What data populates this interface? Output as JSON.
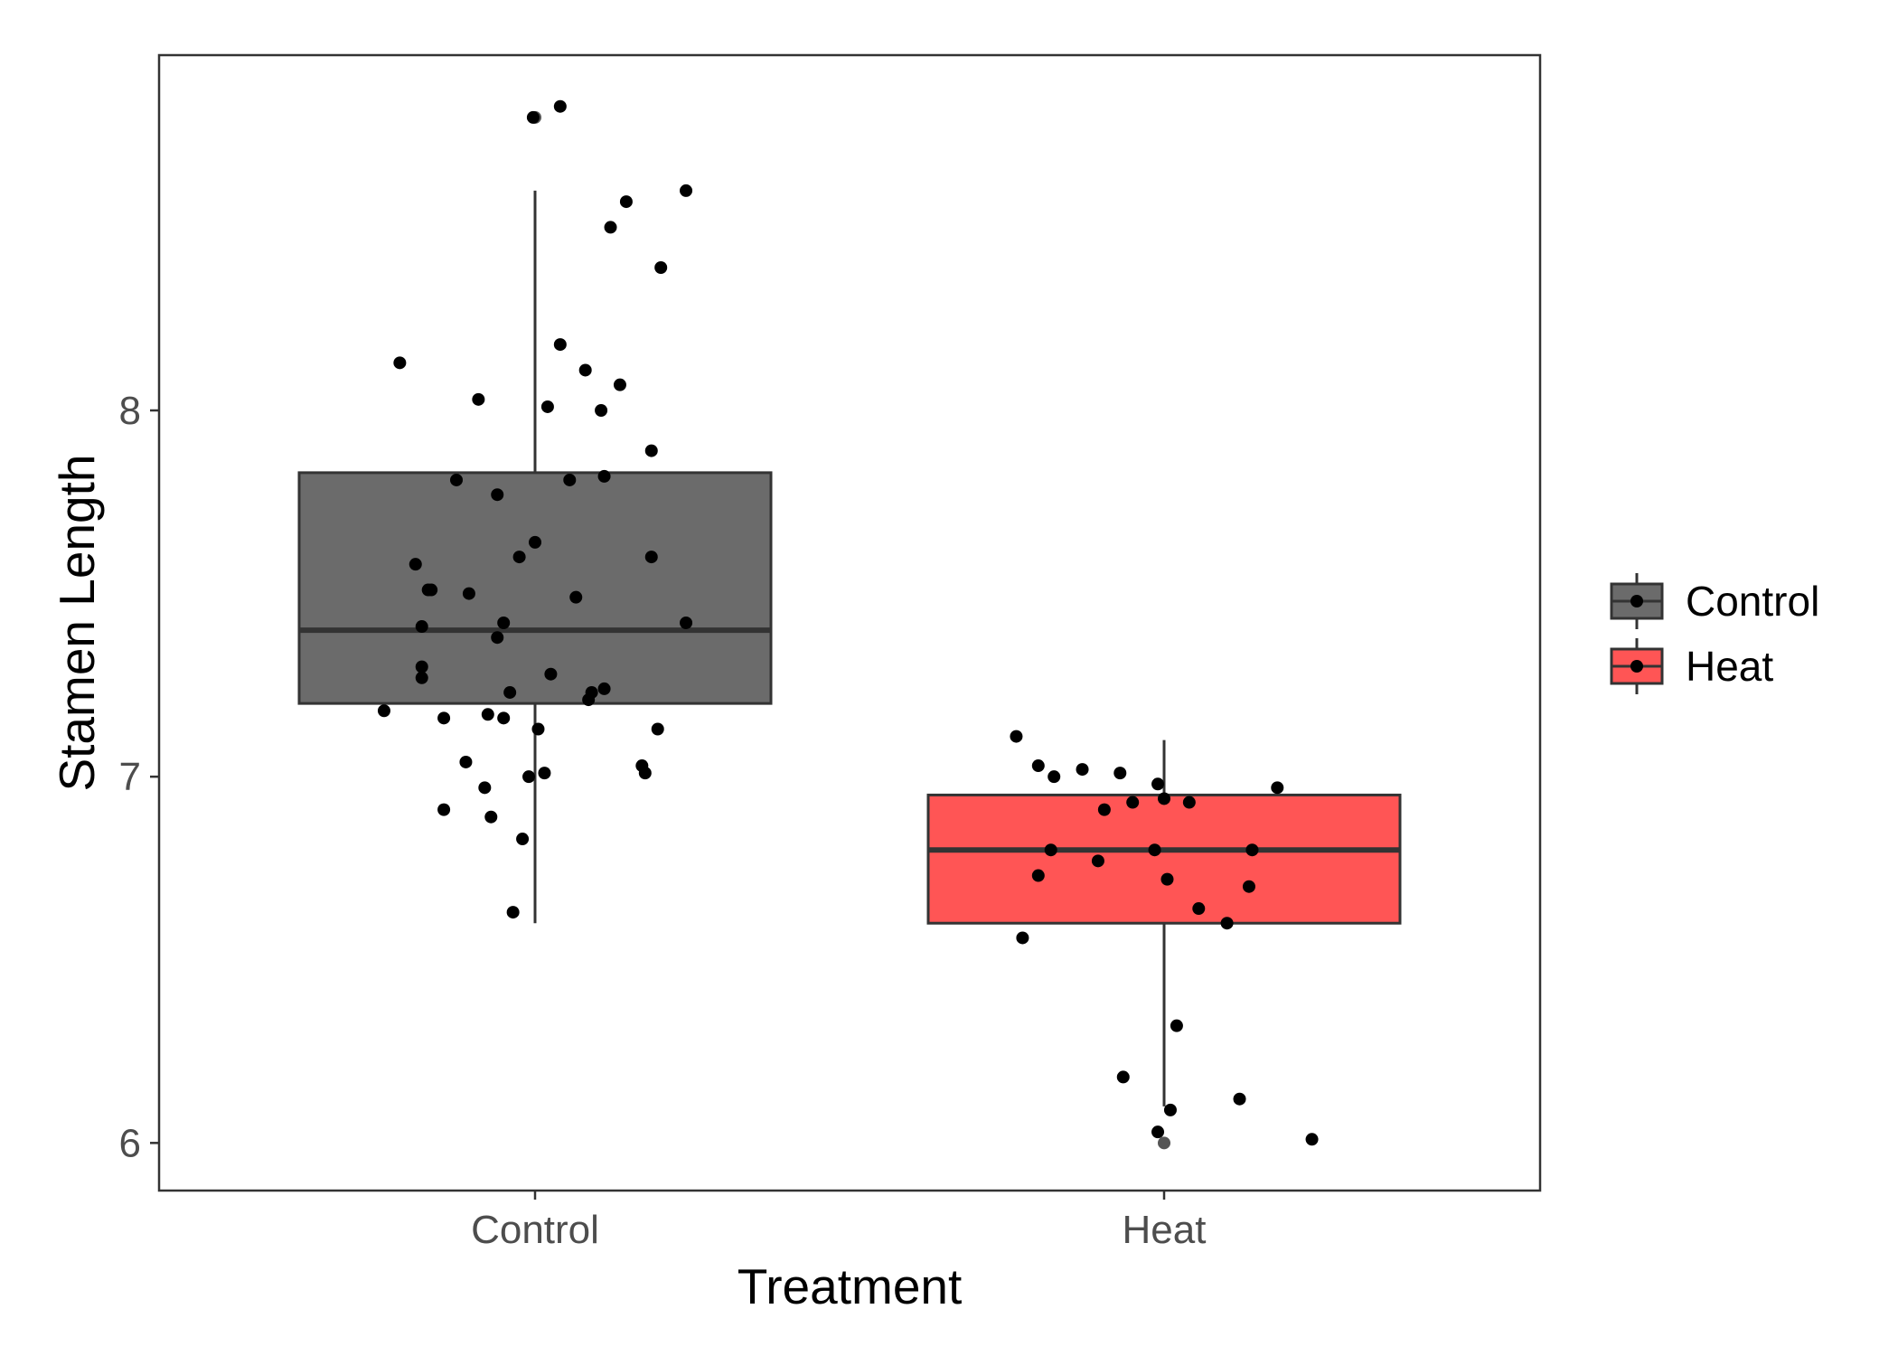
{
  "chart_data": {
    "type": "boxplot",
    "title": "",
    "xlabel": "Treatment",
    "ylabel": "Stamen Length",
    "categories": [
      "Control",
      "Heat"
    ],
    "ylim": [
      5.87,
      8.97
    ],
    "yticks": [
      6,
      7,
      8
    ],
    "grid": false,
    "legend": {
      "placement": "right",
      "entries": [
        {
          "label": "Control",
          "color": "#6b6b6b"
        },
        {
          "label": "Heat",
          "color": "#ff5555"
        }
      ]
    },
    "series": [
      {
        "category": "Control",
        "fill": "#6b6b6b",
        "box": {
          "whisker_low": 6.6,
          "q1": 7.2,
          "median": 7.4,
          "q3": 7.83,
          "whisker_high": 8.6
        },
        "outliers": [
          8.8
        ],
        "points": [
          {
            "x": 0.04,
            "y": 8.83
          },
          {
            "x": -0.003,
            "y": 8.8
          },
          {
            "x": 0.24,
            "y": 8.6
          },
          {
            "x": 0.145,
            "y": 8.57
          },
          {
            "x": 0.12,
            "y": 8.5
          },
          {
            "x": 0.2,
            "y": 8.39
          },
          {
            "x": 0.04,
            "y": 8.18
          },
          {
            "x": -0.215,
            "y": 8.13
          },
          {
            "x": 0.08,
            "y": 8.11
          },
          {
            "x": 0.135,
            "y": 8.07
          },
          {
            "x": -0.09,
            "y": 8.03
          },
          {
            "x": 0.02,
            "y": 8.01
          },
          {
            "x": 0.105,
            "y": 8.0
          },
          {
            "x": 0.185,
            "y": 7.89
          },
          {
            "x": 0.11,
            "y": 7.82
          },
          {
            "x": -0.125,
            "y": 7.81
          },
          {
            "x": 0.055,
            "y": 7.81
          },
          {
            "x": -0.06,
            "y": 7.77
          },
          {
            "x": 0.0,
            "y": 7.64
          },
          {
            "x": -0.025,
            "y": 7.6
          },
          {
            "x": 0.185,
            "y": 7.6
          },
          {
            "x": -0.19,
            "y": 7.58
          },
          {
            "x": -0.17,
            "y": 7.51
          },
          {
            "x": -0.165,
            "y": 7.51
          },
          {
            "x": -0.105,
            "y": 7.5
          },
          {
            "x": 0.065,
            "y": 7.49
          },
          {
            "x": -0.05,
            "y": 7.42
          },
          {
            "x": -0.18,
            "y": 7.41
          },
          {
            "x": 0.24,
            "y": 7.42
          },
          {
            "x": -0.06,
            "y": 7.38
          },
          {
            "x": -0.18,
            "y": 7.3
          },
          {
            "x": 0.025,
            "y": 7.28
          },
          {
            "x": -0.18,
            "y": 7.27
          },
          {
            "x": 0.11,
            "y": 7.24
          },
          {
            "x": 0.09,
            "y": 7.23
          },
          {
            "x": -0.04,
            "y": 7.23
          },
          {
            "x": 0.085,
            "y": 7.21
          },
          {
            "x": -0.24,
            "y": 7.18
          },
          {
            "x": -0.075,
            "y": 7.17
          },
          {
            "x": -0.145,
            "y": 7.16
          },
          {
            "x": -0.05,
            "y": 7.16
          },
          {
            "x": 0.195,
            "y": 7.13
          },
          {
            "x": 0.005,
            "y": 7.13
          },
          {
            "x": -0.11,
            "y": 7.04
          },
          {
            "x": 0.17,
            "y": 7.03
          },
          {
            "x": 0.175,
            "y": 7.01
          },
          {
            "x": 0.015,
            "y": 7.01
          },
          {
            "x": -0.01,
            "y": 7.0
          },
          {
            "x": -0.08,
            "y": 6.97
          },
          {
            "x": -0.145,
            "y": 6.91
          },
          {
            "x": -0.07,
            "y": 6.89
          },
          {
            "x": -0.02,
            "y": 6.83
          },
          {
            "x": -0.035,
            "y": 6.63
          }
        ]
      },
      {
        "category": "Heat",
        "fill": "#ff5555",
        "box": {
          "whisker_low": 6.1,
          "q1": 6.6,
          "median": 6.8,
          "q3": 6.95,
          "whisker_high": 7.1
        },
        "outliers": [
          6.0
        ],
        "points": [
          {
            "x": -0.235,
            "y": 7.11
          },
          {
            "x": -0.2,
            "y": 7.03
          },
          {
            "x": -0.13,
            "y": 7.02
          },
          {
            "x": -0.07,
            "y": 7.01
          },
          {
            "x": -0.175,
            "y": 7.0
          },
          {
            "x": -0.01,
            "y": 6.98
          },
          {
            "x": 0.18,
            "y": 6.97
          },
          {
            "x": 0.0,
            "y": 6.94
          },
          {
            "x": 0.04,
            "y": 6.93
          },
          {
            "x": -0.05,
            "y": 6.93
          },
          {
            "x": -0.095,
            "y": 6.91
          },
          {
            "x": -0.18,
            "y": 6.8
          },
          {
            "x": -0.015,
            "y": 6.8
          },
          {
            "x": 0.14,
            "y": 6.8
          },
          {
            "x": -0.105,
            "y": 6.77
          },
          {
            "x": -0.2,
            "y": 6.73
          },
          {
            "x": 0.005,
            "y": 6.72
          },
          {
            "x": 0.135,
            "y": 6.7
          },
          {
            "x": 0.055,
            "y": 6.64
          },
          {
            "x": 0.1,
            "y": 6.6
          },
          {
            "x": -0.225,
            "y": 6.56
          },
          {
            "x": 0.02,
            "y": 6.32
          },
          {
            "x": -0.065,
            "y": 6.18
          },
          {
            "x": 0.12,
            "y": 6.12
          },
          {
            "x": 0.01,
            "y": 6.09
          },
          {
            "x": -0.01,
            "y": 6.03
          },
          {
            "x": 0.235,
            "y": 6.01
          }
        ]
      }
    ]
  }
}
